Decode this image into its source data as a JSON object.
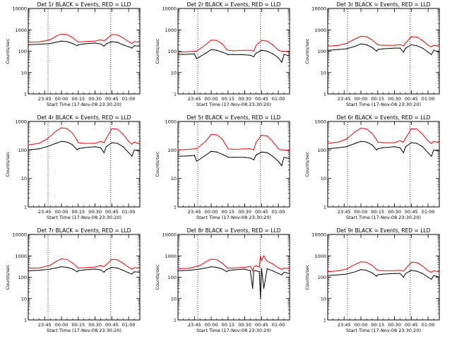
{
  "colors": {
    "events": "#000000",
    "lld": "#ff0000",
    "axes": "#000000",
    "guide": "#000000"
  },
  "chart_data": [
    {
      "type": "line",
      "title": "Det 1r BLACK = Events, RED = LLD",
      "xlabel": "Start Time (17-Nov-08 23:30:20)",
      "ylabel": "Counts/sec",
      "yscale": "log",
      "ylim": [
        1,
        10000
      ],
      "xlim": [
        "23:30:20",
        "01:10:00"
      ],
      "x_ticks": [
        "23:45",
        "00:00",
        "00:15",
        "00:30",
        "00:45",
        "01:00"
      ],
      "y_ticks": [
        "1",
        "10",
        "100",
        "1000",
        "10000"
      ],
      "vertical_markers": [
        "23:48",
        "00:44"
      ],
      "grid": false,
      "x": [
        "23:30:20",
        "23:40",
        "23:50",
        "23:55",
        "00:00",
        "00:05",
        "00:10",
        "00:14",
        "00:15",
        "00:20",
        "00:30",
        "00:35",
        "00:38",
        "00:40",
        "00:45",
        "00:50",
        "00:55",
        "01:00",
        "01:03",
        "01:05",
        "01:10"
      ],
      "series": [
        {
          "name": "BLACK = Events",
          "values": [
            200,
            210,
            230,
            260,
            300,
            280,
            230,
            180,
            200,
            220,
            240,
            220,
            170,
            220,
            280,
            260,
            200,
            160,
            140,
            180,
            170
          ]
        },
        {
          "name": "RED = LLD",
          "values": [
            260,
            270,
            340,
            500,
            640,
            600,
            430,
            290,
            270,
            280,
            300,
            340,
            300,
            360,
            600,
            580,
            420,
            280,
            230,
            280,
            260
          ]
        }
      ]
    },
    {
      "type": "line",
      "title": "Det 2r BLACK = Events, RED = LLD",
      "xlabel": "Start Time (17-Nov-08 23:30:20)",
      "ylabel": "Counts/sec",
      "yscale": "log",
      "ylim": [
        1,
        10000
      ],
      "xlim": [
        "23:30:20",
        "01:10:00"
      ],
      "x_ticks": [
        "23:45",
        "00:00",
        "00:15",
        "00:30",
        "00:45",
        "01:00"
      ],
      "y_ticks": [
        "1",
        "10",
        "100",
        "1000",
        "10000"
      ],
      "vertical_markers": [
        "23:48",
        "00:44"
      ],
      "grid": false,
      "x": [
        "23:30:20",
        "23:40",
        "23:45",
        "23:47",
        "23:55",
        "00:00",
        "00:05",
        "00:10",
        "00:14",
        "00:15",
        "00:20",
        "00:30",
        "00:35",
        "00:38",
        "00:40",
        "00:45",
        "00:50",
        "00:55",
        "01:00",
        "01:03",
        "01:05",
        "01:10"
      ],
      "series": [
        {
          "name": "BLACK = Events",
          "values": [
            70,
            72,
            75,
            45,
            80,
            120,
            110,
            90,
            75,
            70,
            70,
            68,
            65,
            55,
            80,
            110,
            100,
            75,
            50,
            30,
            70,
            60
          ]
        },
        {
          "name": "RED = LLD",
          "values": [
            90,
            95,
            100,
            100,
            200,
            330,
            320,
            220,
            120,
            110,
            105,
            110,
            110,
            100,
            180,
            320,
            300,
            200,
            110,
            100,
            100,
            95
          ]
        }
      ]
    },
    {
      "type": "line",
      "title": "Det 3r BLACK = Events, RED = LLD",
      "xlabel": "Start Time (17-Nov-08 23:30:20)",
      "ylabel": "Counts/sec",
      "yscale": "log",
      "ylim": [
        1,
        10000
      ],
      "xlim": [
        "23:30:20",
        "01:10:00"
      ],
      "x_ticks": [
        "23:45",
        "00:00",
        "00:15",
        "00:30",
        "00:45",
        "01:00"
      ],
      "y_ticks": [
        "1",
        "10",
        "100",
        "1000",
        "10000"
      ],
      "vertical_markers": [
        "23:48",
        "00:44"
      ],
      "grid": false,
      "x": [
        "23:30:20",
        "23:40",
        "23:47",
        "23:55",
        "00:00",
        "00:05",
        "00:10",
        "00:14",
        "00:15",
        "00:20",
        "00:30",
        "00:35",
        "00:38",
        "00:40",
        "00:45",
        "00:50",
        "00:55",
        "01:00",
        "01:03",
        "01:05",
        "01:10"
      ],
      "series": [
        {
          "name": "BLACK = Events",
          "values": [
            110,
            120,
            130,
            170,
            220,
            200,
            150,
            100,
            120,
            130,
            140,
            140,
            90,
            140,
            200,
            180,
            140,
            90,
            70,
            110,
            90
          ]
        },
        {
          "name": "RED = LLD",
          "values": [
            170,
            190,
            230,
            380,
            500,
            480,
            340,
            220,
            200,
            190,
            190,
            200,
            180,
            240,
            480,
            460,
            320,
            190,
            160,
            190,
            170
          ]
        }
      ]
    },
    {
      "type": "line",
      "title": "Det 4r BLACK = Events, RED = LLD",
      "xlabel": "Start Time (17-Nov-08 23:30:20)",
      "ylabel": "Counts/sec",
      "yscale": "log",
      "ylim": [
        1,
        1000
      ],
      "xlim": [
        "23:30:20",
        "01:10:00"
      ],
      "x_ticks": [
        "23:45",
        "00:00",
        "00:15",
        "00:30",
        "00:45",
        "01:00"
      ],
      "y_ticks": [
        "1",
        "10",
        "100",
        "1000"
      ],
      "vertical_markers": [
        "23:48",
        "00:44"
      ],
      "grid": false,
      "x": [
        "23:30:20",
        "23:40",
        "23:47",
        "23:55",
        "00:00",
        "00:05",
        "00:10",
        "00:14",
        "00:15",
        "00:20",
        "00:30",
        "00:35",
        "00:38",
        "00:40",
        "00:45",
        "00:50",
        "00:55",
        "01:00",
        "01:03",
        "01:05",
        "01:10"
      ],
      "series": [
        {
          "name": "BLACK = Events",
          "values": [
            100,
            110,
            130,
            170,
            200,
            190,
            150,
            100,
            110,
            120,
            130,
            120,
            80,
            130,
            180,
            170,
            130,
            80,
            60,
            100,
            90
          ]
        },
        {
          "name": "RED = LLD",
          "values": [
            150,
            170,
            240,
            450,
            600,
            560,
            380,
            220,
            180,
            170,
            170,
            200,
            180,
            250,
            560,
            540,
            360,
            200,
            160,
            190,
            160
          ]
        }
      ]
    },
    {
      "type": "line",
      "title": "Det 5r BLACK = Events, RED = LLD",
      "xlabel": "Start Time (17-Nov-08 23:30:20)",
      "ylabel": "Counts/sec",
      "yscale": "log",
      "ylim": [
        1,
        1000
      ],
      "xlim": [
        "23:30:20",
        "01:10:00"
      ],
      "x_ticks": [
        "23:45",
        "00:00",
        "00:15",
        "00:30",
        "00:45",
        "01:00"
      ],
      "y_ticks": [
        "1",
        "10",
        "100",
        "1000"
      ],
      "vertical_markers": [
        "23:48",
        "00:44"
      ],
      "grid": false,
      "x": [
        "23:30:20",
        "23:40",
        "23:45",
        "23:47",
        "23:55",
        "00:00",
        "00:05",
        "00:10",
        "00:14",
        "00:15",
        "00:20",
        "00:30",
        "00:35",
        "00:38",
        "00:40",
        "00:45",
        "00:50",
        "00:55",
        "01:00",
        "01:03",
        "01:05",
        "01:10"
      ],
      "series": [
        {
          "name": "BLACK = Events",
          "values": [
            60,
            62,
            65,
            40,
            65,
            90,
            85,
            70,
            60,
            55,
            55,
            55,
            52,
            45,
            65,
            85,
            80,
            60,
            40,
            28,
            55,
            50
          ]
        },
        {
          "name": "RED = LLD",
          "values": [
            100,
            105,
            110,
            110,
            200,
            350,
            340,
            240,
            130,
            110,
            105,
            110,
            110,
            100,
            180,
            330,
            310,
            200,
            110,
            100,
            100,
            95
          ]
        }
      ]
    },
    {
      "type": "line",
      "title": "Det 6r BLACK = Events, RED = LLD",
      "xlabel": "Start Time (17-Nov-08 23:30:20)",
      "ylabel": "Counts/sec",
      "yscale": "log",
      "ylim": [
        1,
        1000
      ],
      "xlim": [
        "23:30:20",
        "01:10:00"
      ],
      "x_ticks": [
        "23:45",
        "00:00",
        "00:15",
        "00:30",
        "00:45",
        "01:00"
      ],
      "y_ticks": [
        "1",
        "10",
        "100",
        "1000"
      ],
      "vertical_markers": [
        "23:48",
        "00:44"
      ],
      "grid": false,
      "x": [
        "23:30:20",
        "23:40",
        "23:47",
        "23:55",
        "00:00",
        "00:05",
        "00:10",
        "00:14",
        "00:15",
        "00:20",
        "00:30",
        "00:35",
        "00:38",
        "00:40",
        "00:45",
        "00:50",
        "00:55",
        "01:00",
        "01:03",
        "01:05",
        "01:10"
      ],
      "series": [
        {
          "name": "BLACK = Events",
          "values": [
            110,
            120,
            130,
            170,
            200,
            190,
            150,
            100,
            110,
            120,
            130,
            120,
            80,
            130,
            180,
            170,
            130,
            80,
            60,
            100,
            90
          ]
        },
        {
          "name": "RED = LLD",
          "values": [
            170,
            190,
            240,
            440,
            580,
            550,
            380,
            230,
            190,
            180,
            180,
            210,
            190,
            260,
            560,
            540,
            360,
            210,
            170,
            200,
            180
          ]
        }
      ]
    },
    {
      "type": "line",
      "title": "Det 7r BLACK = Events, RED = LLD",
      "xlabel": "Start Time (17-Nov-08 23:30:20)",
      "ylabel": "Counts/sec",
      "yscale": "log",
      "ylim": [
        1,
        10000
      ],
      "xlim": [
        "23:30:20",
        "01:10:00"
      ],
      "x_ticks": [
        "23:45",
        "00:00",
        "00:15",
        "00:30",
        "00:45",
        "01:00"
      ],
      "y_ticks": [
        "1",
        "10",
        "100",
        "1000",
        "10000"
      ],
      "vertical_markers": [
        "23:48",
        "00:44"
      ],
      "grid": false,
      "x": [
        "23:30:20",
        "23:40",
        "23:50",
        "23:55",
        "00:00",
        "00:05",
        "00:10",
        "00:14",
        "00:15",
        "00:20",
        "00:30",
        "00:35",
        "00:38",
        "00:40",
        "00:45",
        "00:50",
        "00:55",
        "01:00",
        "01:03",
        "01:05",
        "01:10"
      ],
      "series": [
        {
          "name": "BLACK = Events",
          "values": [
            200,
            210,
            240,
            270,
            310,
            290,
            240,
            180,
            200,
            220,
            240,
            220,
            170,
            220,
            290,
            270,
            210,
            160,
            140,
            180,
            170
          ]
        },
        {
          "name": "RED = LLD",
          "values": [
            260,
            270,
            360,
            540,
            720,
            680,
            460,
            300,
            270,
            280,
            300,
            350,
            310,
            380,
            680,
            650,
            450,
            290,
            240,
            280,
            260
          ]
        }
      ]
    },
    {
      "type": "line",
      "title": "Det 8r BLACK = Events, RED = LLD",
      "xlabel": "Start Time (17-Nov-08 23:30:20)",
      "ylabel": "Counts/sec",
      "yscale": "log",
      "ylim": [
        1,
        10000
      ],
      "xlim": [
        "23:30:20",
        "01:10:00"
      ],
      "x_ticks": [
        "23:45",
        "00:00",
        "00:15",
        "00:30",
        "00:45",
        "01:00"
      ],
      "y_ticks": [
        "1",
        "10",
        "100",
        "1000",
        "10000"
      ],
      "vertical_markers": [
        "23:48",
        "00:44"
      ],
      "grid": false,
      "x": [
        "23:30:20",
        "23:40",
        "23:50",
        "23:55",
        "00:00",
        "00:05",
        "00:10",
        "00:14",
        "00:15",
        "00:20",
        "00:30",
        "00:35",
        "00:37",
        "00:38",
        "00:40",
        "00:43",
        "00:44",
        "00:45",
        "00:47",
        "00:50",
        "00:55",
        "01:00",
        "01:03",
        "01:05",
        "01:10"
      ],
      "series": [
        {
          "name": "BLACK = Events",
          "values": [
            200,
            210,
            240,
            270,
            310,
            290,
            240,
            180,
            200,
            220,
            240,
            200,
            30,
            200,
            200,
            180,
            10,
            250,
            30,
            250,
            200,
            150,
            130,
            170,
            150
          ]
        },
        {
          "name": "RED = LLD",
          "values": [
            250,
            260,
            350,
            520,
            700,
            660,
            450,
            290,
            260,
            270,
            290,
            320,
            200,
            290,
            350,
            300,
            1000,
            600,
            1000,
            560,
            420,
            280,
            230,
            270,
            250
          ]
        }
      ]
    },
    {
      "type": "line",
      "title": "Det 9r BLACK = Events, RED = LLD",
      "xlabel": "Start Time (17-Nov-08 23:30:20)",
      "ylabel": "Counts/sec",
      "yscale": "log",
      "ylim": [
        1,
        10000
      ],
      "xlim": [
        "23:30:20",
        "01:10:00"
      ],
      "x_ticks": [
        "23:45",
        "00:00",
        "00:15",
        "00:30",
        "00:45",
        "01:00"
      ],
      "y_ticks": [
        "1",
        "10",
        "100",
        "1000",
        "10000"
      ],
      "vertical_markers": [
        "23:48",
        "00:44"
      ],
      "grid": false,
      "x": [
        "23:30:20",
        "23:40",
        "23:47",
        "23:55",
        "00:00",
        "00:05",
        "00:10",
        "00:14",
        "00:15",
        "00:20",
        "00:30",
        "00:35",
        "00:38",
        "00:40",
        "00:45",
        "00:50",
        "00:55",
        "01:00",
        "01:03",
        "01:05",
        "01:10"
      ],
      "series": [
        {
          "name": "BLACK = Events",
          "values": [
            120,
            130,
            140,
            180,
            230,
            210,
            160,
            110,
            130,
            140,
            150,
            150,
            100,
            150,
            210,
            190,
            150,
            100,
            80,
            120,
            100
          ]
        },
        {
          "name": "RED = LLD",
          "values": [
            180,
            200,
            240,
            400,
            520,
            500,
            360,
            230,
            210,
            200,
            200,
            210,
            190,
            250,
            500,
            480,
            340,
            200,
            170,
            200,
            180
          ]
        }
      ]
    }
  ]
}
